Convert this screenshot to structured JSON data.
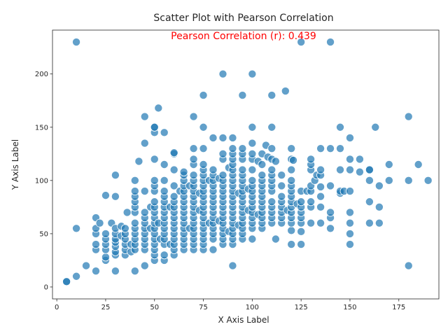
{
  "chart_data": {
    "type": "scatter",
    "title": "Scatter Plot with Pearson Correlation",
    "xlabel": "X Axis Label",
    "ylabel": "Y Axis Label",
    "annotation": "Pearson Correlation (r): 0.439",
    "annotation_color": "#ff0000",
    "point_color": "#1f77b4",
    "xlim": [
      -2.2,
      195.5
    ],
    "ylim": [
      -11.2,
      241.2
    ],
    "xticks": [
      0,
      25,
      50,
      75,
      100,
      125,
      150,
      175
    ],
    "yticks": [
      0,
      50,
      100,
      150,
      200
    ],
    "grid": false,
    "points": [
      [
        5,
        5
      ],
      [
        5,
        5
      ],
      [
        10,
        10
      ],
      [
        10,
        55
      ],
      [
        10,
        230
      ],
      [
        15,
        20
      ],
      [
        20,
        15
      ],
      [
        20,
        35
      ],
      [
        20,
        40
      ],
      [
        20,
        50
      ],
      [
        20,
        55
      ],
      [
        20,
        65
      ],
      [
        22,
        60
      ],
      [
        25,
        25
      ],
      [
        25,
        28
      ],
      [
        25,
        35
      ],
      [
        25,
        40
      ],
      [
        25,
        45
      ],
      [
        25,
        50
      ],
      [
        25,
        86
      ],
      [
        28,
        60
      ],
      [
        30,
        15
      ],
      [
        30,
        30
      ],
      [
        30,
        33
      ],
      [
        30,
        38
      ],
      [
        30,
        42
      ],
      [
        30,
        45
      ],
      [
        30,
        50
      ],
      [
        30,
        55
      ],
      [
        30,
        85
      ],
      [
        30,
        105
      ],
      [
        33,
        48
      ],
      [
        33,
        57
      ],
      [
        35,
        30
      ],
      [
        35,
        35
      ],
      [
        35,
        40
      ],
      [
        35,
        45
      ],
      [
        35,
        50
      ],
      [
        35,
        55
      ],
      [
        36,
        70
      ],
      [
        38,
        33
      ],
      [
        38,
        40
      ],
      [
        40,
        15
      ],
      [
        40,
        35
      ],
      [
        40,
        40
      ],
      [
        40,
        45
      ],
      [
        40,
        50
      ],
      [
        40,
        55
      ],
      [
        40,
        60
      ],
      [
        40,
        70
      ],
      [
        40,
        75
      ],
      [
        40,
        80
      ],
      [
        40,
        85
      ],
      [
        40,
        90
      ],
      [
        40,
        100
      ],
      [
        42,
        118
      ],
      [
        45,
        20
      ],
      [
        45,
        35
      ],
      [
        45,
        40
      ],
      [
        45,
        45
      ],
      [
        45,
        50
      ],
      [
        45,
        55
      ],
      [
        45,
        60
      ],
      [
        45,
        65
      ],
      [
        45,
        70
      ],
      [
        45,
        90
      ],
      [
        45,
        135
      ],
      [
        45,
        160
      ],
      [
        48,
        55
      ],
      [
        48,
        75
      ],
      [
        50,
        25
      ],
      [
        50,
        30
      ],
      [
        50,
        35
      ],
      [
        50,
        40
      ],
      [
        50,
        45
      ],
      [
        50,
        50
      ],
      [
        50,
        55
      ],
      [
        50,
        60
      ],
      [
        50,
        65
      ],
      [
        50,
        70
      ],
      [
        50,
        75
      ],
      [
        50,
        80
      ],
      [
        50,
        90
      ],
      [
        50,
        95
      ],
      [
        50,
        100
      ],
      [
        50,
        120
      ],
      [
        50,
        145
      ],
      [
        50,
        150
      ],
      [
        50,
        150
      ],
      [
        52,
        168
      ],
      [
        52,
        60
      ],
      [
        53,
        45
      ],
      [
        55,
        25
      ],
      [
        55,
        30
      ],
      [
        55,
        40
      ],
      [
        55,
        45
      ],
      [
        55,
        50
      ],
      [
        55,
        55
      ],
      [
        55,
        60
      ],
      [
        55,
        65
      ],
      [
        55,
        70
      ],
      [
        55,
        75
      ],
      [
        55,
        80
      ],
      [
        55,
        85
      ],
      [
        55,
        90
      ],
      [
        55,
        100
      ],
      [
        55,
        115
      ],
      [
        55,
        145
      ],
      [
        58,
        40
      ],
      [
        58,
        75
      ],
      [
        60,
        30
      ],
      [
        60,
        35
      ],
      [
        60,
        40
      ],
      [
        60,
        45
      ],
      [
        60,
        50
      ],
      [
        60,
        55
      ],
      [
        60,
        60
      ],
      [
        60,
        65
      ],
      [
        60,
        70
      ],
      [
        60,
        75
      ],
      [
        60,
        80
      ],
      [
        60,
        85
      ],
      [
        60,
        95
      ],
      [
        60,
        110
      ],
      [
        60,
        125
      ],
      [
        60,
        126
      ],
      [
        63,
        90
      ],
      [
        65,
        35
      ],
      [
        65,
        40
      ],
      [
        65,
        45
      ],
      [
        65,
        50
      ],
      [
        65,
        55
      ],
      [
        65,
        60
      ],
      [
        65,
        65
      ],
      [
        65,
        70
      ],
      [
        65,
        75
      ],
      [
        65,
        80
      ],
      [
        65,
        85
      ],
      [
        65,
        90
      ],
      [
        65,
        95
      ],
      [
        65,
        100
      ],
      [
        65,
        105
      ],
      [
        65,
        108
      ],
      [
        68,
        55
      ],
      [
        68,
        95
      ],
      [
        70,
        35
      ],
      [
        70,
        40
      ],
      [
        70,
        45
      ],
      [
        70,
        50
      ],
      [
        70,
        55
      ],
      [
        70,
        60
      ],
      [
        70,
        65
      ],
      [
        70,
        70
      ],
      [
        70,
        75
      ],
      [
        70,
        80
      ],
      [
        70,
        85
      ],
      [
        70,
        90
      ],
      [
        70,
        95
      ],
      [
        70,
        100
      ],
      [
        70,
        105
      ],
      [
        70,
        115
      ],
      [
        70,
        120
      ],
      [
        70,
        130
      ],
      [
        70,
        160
      ],
      [
        73,
        72
      ],
      [
        73,
        88
      ],
      [
        75,
        35
      ],
      [
        75,
        40
      ],
      [
        75,
        45
      ],
      [
        75,
        50
      ],
      [
        75,
        55
      ],
      [
        75,
        60
      ],
      [
        75,
        65
      ],
      [
        75,
        70
      ],
      [
        75,
        75
      ],
      [
        75,
        80
      ],
      [
        75,
        85
      ],
      [
        75,
        90
      ],
      [
        75,
        95
      ],
      [
        75,
        100
      ],
      [
        75,
        105
      ],
      [
        75,
        110
      ],
      [
        75,
        115
      ],
      [
        75,
        130
      ],
      [
        75,
        150
      ],
      [
        75,
        180
      ],
      [
        78,
        60
      ],
      [
        78,
        100
      ],
      [
        80,
        35
      ],
      [
        80,
        45
      ],
      [
        80,
        50
      ],
      [
        80,
        55
      ],
      [
        80,
        60
      ],
      [
        80,
        65
      ],
      [
        80,
        70
      ],
      [
        80,
        75
      ],
      [
        80,
        80
      ],
      [
        80,
        85
      ],
      [
        80,
        90
      ],
      [
        80,
        95
      ],
      [
        80,
        100
      ],
      [
        80,
        105
      ],
      [
        80,
        110
      ],
      [
        80,
        140
      ],
      [
        83,
        62
      ],
      [
        83,
        102
      ],
      [
        85,
        40
      ],
      [
        85,
        45
      ],
      [
        85,
        50
      ],
      [
        85,
        55
      ],
      [
        85,
        60
      ],
      [
        85,
        65
      ],
      [
        85,
        70
      ],
      [
        85,
        75
      ],
      [
        85,
        80
      ],
      [
        85,
        85
      ],
      [
        85,
        90
      ],
      [
        85,
        95
      ],
      [
        85,
        100
      ],
      [
        85,
        105
      ],
      [
        85,
        120
      ],
      [
        85,
        125
      ],
      [
        85,
        140
      ],
      [
        85,
        200
      ],
      [
        88,
        52
      ],
      [
        88,
        112
      ],
      [
        90,
        20
      ],
      [
        90,
        40
      ],
      [
        90,
        45
      ],
      [
        90,
        50
      ],
      [
        90,
        55
      ],
      [
        90,
        60
      ],
      [
        90,
        65
      ],
      [
        90,
        70
      ],
      [
        90,
        75
      ],
      [
        90,
        80
      ],
      [
        90,
        85
      ],
      [
        90,
        90
      ],
      [
        90,
        95
      ],
      [
        90,
        100
      ],
      [
        90,
        105
      ],
      [
        90,
        110
      ],
      [
        90,
        115
      ],
      [
        90,
        120
      ],
      [
        90,
        125
      ],
      [
        90,
        130
      ],
      [
        90,
        140
      ],
      [
        93,
        58
      ],
      [
        93,
        88
      ],
      [
        95,
        45
      ],
      [
        95,
        50
      ],
      [
        95,
        55
      ],
      [
        95,
        60
      ],
      [
        95,
        65
      ],
      [
        95,
        70
      ],
      [
        95,
        75
      ],
      [
        95,
        80
      ],
      [
        95,
        85
      ],
      [
        95,
        90
      ],
      [
        95,
        95
      ],
      [
        95,
        100
      ],
      [
        95,
        105
      ],
      [
        95,
        110
      ],
      [
        95,
        120
      ],
      [
        95,
        125
      ],
      [
        95,
        130
      ],
      [
        95,
        180
      ],
      [
        98,
        72
      ],
      [
        98,
        92
      ],
      [
        100,
        45
      ],
      [
        100,
        55
      ],
      [
        100,
        60
      ],
      [
        100,
        65
      ],
      [
        100,
        70
      ],
      [
        100,
        75
      ],
      [
        100,
        80
      ],
      [
        100,
        85
      ],
      [
        100,
        90
      ],
      [
        100,
        95
      ],
      [
        100,
        100
      ],
      [
        100,
        110
      ],
      [
        100,
        120
      ],
      [
        100,
        125
      ],
      [
        100,
        135
      ],
      [
        100,
        150
      ],
      [
        100,
        200
      ],
      [
        103,
        68
      ],
      [
        103,
        118
      ],
      [
        105,
        55
      ],
      [
        105,
        60
      ],
      [
        105,
        65
      ],
      [
        105,
        70
      ],
      [
        105,
        75
      ],
      [
        105,
        80
      ],
      [
        105,
        85
      ],
      [
        105,
        90
      ],
      [
        105,
        95
      ],
      [
        105,
        100
      ],
      [
        105,
        105
      ],
      [
        105,
        115
      ],
      [
        105,
        125
      ],
      [
        107,
        133
      ],
      [
        108,
        122
      ],
      [
        110,
        60
      ],
      [
        110,
        65
      ],
      [
        110,
        70
      ],
      [
        110,
        75
      ],
      [
        110,
        80
      ],
      [
        110,
        90
      ],
      [
        110,
        95
      ],
      [
        110,
        100
      ],
      [
        110,
        105
      ],
      [
        110,
        110
      ],
      [
        110,
        120
      ],
      [
        110,
        130
      ],
      [
        110,
        150
      ],
      [
        110,
        180
      ],
      [
        112,
        45
      ],
      [
        112,
        118
      ],
      [
        115,
        60
      ],
      [
        115,
        65
      ],
      [
        115,
        70
      ],
      [
        115,
        75
      ],
      [
        115,
        80
      ],
      [
        115,
        85
      ],
      [
        115,
        95
      ],
      [
        115,
        105
      ],
      [
        117,
        184
      ],
      [
        118,
        72
      ],
      [
        120,
        40
      ],
      [
        120,
        53
      ],
      [
        120,
        60
      ],
      [
        120,
        65
      ],
      [
        120,
        70
      ],
      [
        120,
        75
      ],
      [
        120,
        80
      ],
      [
        120,
        85
      ],
      [
        120,
        90
      ],
      [
        120,
        95
      ],
      [
        120,
        100
      ],
      [
        120,
        110
      ],
      [
        120,
        120
      ],
      [
        120,
        130
      ],
      [
        121,
        119
      ],
      [
        123,
        78
      ],
      [
        125,
        40
      ],
      [
        125,
        52
      ],
      [
        125,
        60
      ],
      [
        125,
        65
      ],
      [
        125,
        70
      ],
      [
        125,
        75
      ],
      [
        125,
        80
      ],
      [
        125,
        90
      ],
      [
        125,
        230
      ],
      [
        128,
        90
      ],
      [
        130,
        60
      ],
      [
        130,
        75
      ],
      [
        130,
        80
      ],
      [
        130,
        90
      ],
      [
        130,
        95
      ],
      [
        130,
        110
      ],
      [
        130,
        115
      ],
      [
        130,
        120
      ],
      [
        132,
        100
      ],
      [
        133,
        105
      ],
      [
        135,
        60
      ],
      [
        135,
        75
      ],
      [
        135,
        85
      ],
      [
        135,
        94
      ],
      [
        135,
        105
      ],
      [
        135,
        110
      ],
      [
        135,
        130
      ],
      [
        140,
        55
      ],
      [
        140,
        65
      ],
      [
        140,
        70
      ],
      [
        140,
        95
      ],
      [
        140,
        130
      ],
      [
        140,
        230
      ],
      [
        145,
        88
      ],
      [
        145,
        90
      ],
      [
        145,
        110
      ],
      [
        145,
        130
      ],
      [
        145,
        150
      ],
      [
        147,
        90
      ],
      [
        150,
        40
      ],
      [
        150,
        50
      ],
      [
        150,
        60
      ],
      [
        150,
        70
      ],
      [
        150,
        90
      ],
      [
        150,
        110
      ],
      [
        150,
        120
      ],
      [
        150,
        140
      ],
      [
        155,
        108
      ],
      [
        155,
        120
      ],
      [
        160,
        60
      ],
      [
        160,
        80
      ],
      [
        160,
        100
      ],
      [
        160,
        110
      ],
      [
        160,
        110
      ],
      [
        163,
        150
      ],
      [
        165,
        60
      ],
      [
        165,
        75
      ],
      [
        165,
        95
      ],
      [
        170,
        100
      ],
      [
        170,
        115
      ],
      [
        180,
        20
      ],
      [
        180,
        100
      ],
      [
        180,
        160
      ],
      [
        185,
        115
      ],
      [
        190,
        100
      ]
    ]
  }
}
